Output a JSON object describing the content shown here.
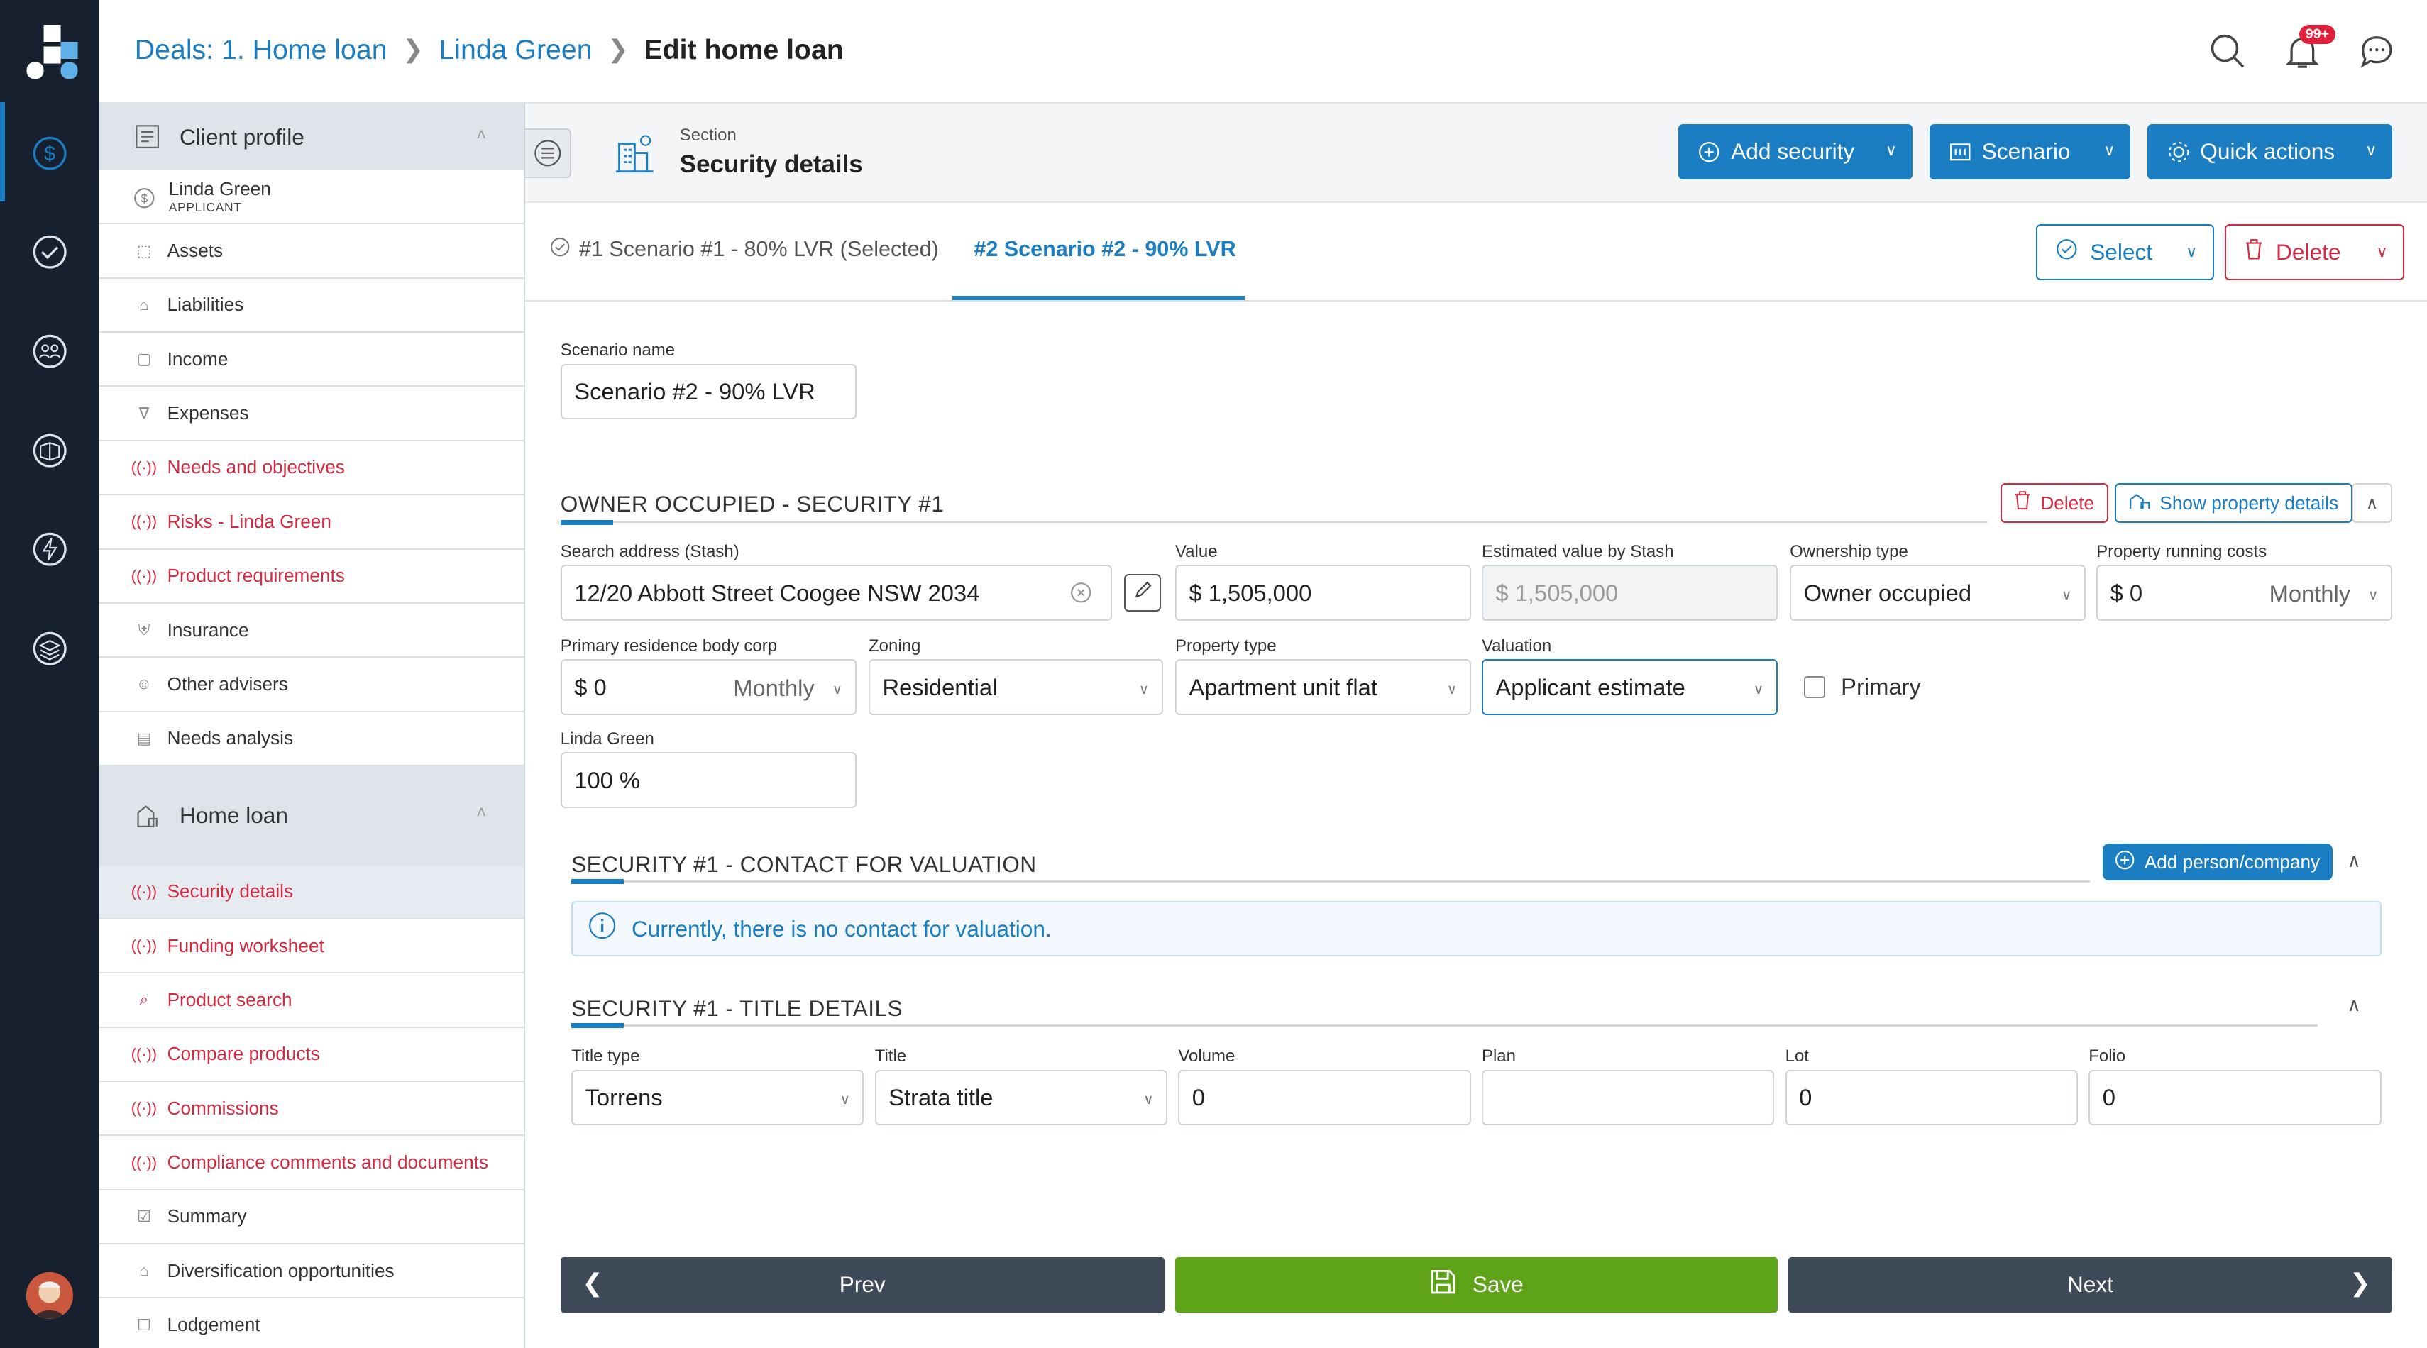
{
  "breadcrumb": {
    "deals": "Deals: 1. Home loan",
    "client": "Linda Green",
    "current": "Edit home loan"
  },
  "header": {
    "notification_count": "99+"
  },
  "sidebar": {
    "client_profile_label": "Client profile",
    "applicant_name": "Linda Green",
    "applicant_role": "APPLICANT",
    "client_items": [
      "Assets",
      "Liabilities",
      "Income",
      "Expenses",
      "Needs and objectives",
      "Risks - Linda Green",
      "Product requirements",
      "Insurance",
      "Other advisers",
      "Needs analysis"
    ],
    "home_loan_label": "Home loan",
    "home_loan_items": [
      "Security details",
      "Funding worksheet",
      "Product search",
      "Compare products",
      "Commissions",
      "Compliance comments and documents",
      "Summary",
      "Diversification opportunities",
      "Lodgement"
    ]
  },
  "section": {
    "label": "Section",
    "title": "Security details",
    "add_security": "Add security",
    "scenario": "Scenario",
    "quick_actions": "Quick actions"
  },
  "tabs": {
    "tab1": "#1 Scenario #1 - 80% LVR (Selected)",
    "tab2": "#2 Scenario #2 - 90% LVR",
    "select": "Select",
    "delete": "Delete"
  },
  "form": {
    "scenario_name_label": "Scenario name",
    "scenario_name_value": "Scenario #2 - 90% LVR",
    "security_heading": "OWNER OCCUPIED - SECURITY #1",
    "delete_btn": "Delete",
    "show_property_btn": "Show property details",
    "search_address_label": "Search address (Stash)",
    "search_address_value": "12/20 Abbott Street Coogee NSW 2034",
    "value_label": "Value",
    "value_value": "$ 1,505,000",
    "estimated_label": "Estimated value by Stash",
    "estimated_value": "$ 1,505,000",
    "ownership_label": "Ownership type",
    "ownership_value": "Owner occupied",
    "running_costs_label": "Property running costs",
    "running_costs_value": "$ 0",
    "running_costs_freq": "Monthly",
    "body_corp_label": "Primary residence body corp",
    "body_corp_value": "$ 0",
    "body_corp_freq": "Monthly",
    "zoning_label": "Zoning",
    "zoning_value": "Residential",
    "property_type_label": "Property type",
    "property_type_value": "Apartment unit flat",
    "valuation_label": "Valuation",
    "valuation_value": "Applicant estimate",
    "primary_label": "Primary",
    "owner_label": "Linda Green",
    "owner_value": "100 %",
    "contact_heading": "SECURITY #1 - CONTACT FOR VALUATION",
    "add_person_btn": "Add person/company",
    "no_contact_text": "Currently, there is no contact for valuation.",
    "title_heading": "SECURITY #1 - TITLE DETAILS",
    "title_type_label": "Title type",
    "title_type_value": "Torrens",
    "title_label": "Title",
    "title_value": "Strata title",
    "volume_label": "Volume",
    "volume_value": "0",
    "plan_label": "Plan",
    "plan_value": "",
    "lot_label": "Lot",
    "lot_value": "0",
    "folio_label": "Folio",
    "folio_value": "0"
  },
  "footer": {
    "prev": "Prev",
    "save": "Save",
    "next": "Next"
  },
  "colors": {
    "accent": "#1b7ec3",
    "danger": "#d22a40",
    "save": "#5fa318",
    "nav_dark": "#16202e",
    "footer_dark": "#3f4a59"
  }
}
